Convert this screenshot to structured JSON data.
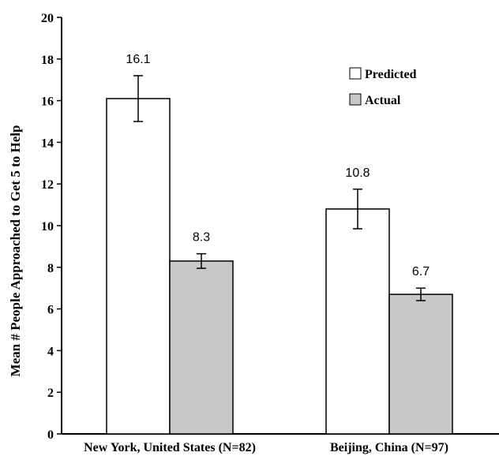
{
  "chart_data": {
    "type": "bar",
    "categories": [
      "New York, United States (N=82)",
      "Beijing, China (N=97)"
    ],
    "series": [
      {
        "name": "Predicted",
        "values": [
          16.1,
          10.8
        ],
        "error": [
          1.1,
          0.95
        ],
        "color": "#ffffff",
        "data_labels": [
          "16.1",
          "10.8"
        ]
      },
      {
        "name": "Actual",
        "values": [
          8.3,
          6.7
        ],
        "error": [
          0.35,
          0.3
        ],
        "color": "#c8c8c8",
        "data_labels": [
          "8.3",
          "6.7"
        ]
      }
    ],
    "ylabel": "Mean # People Approached to Get 5 to Help",
    "xlabel": "",
    "ylim": [
      0,
      20
    ],
    "yticks": [
      0,
      2,
      4,
      6,
      8,
      10,
      12,
      14,
      16,
      18,
      20
    ],
    "grid": false,
    "legend": "top-right"
  }
}
